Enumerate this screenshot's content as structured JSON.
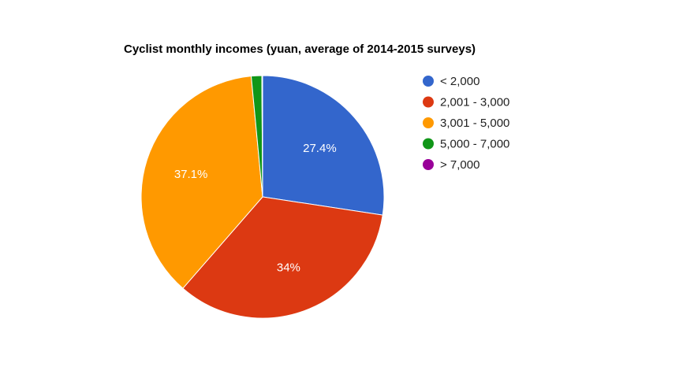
{
  "chart_data": {
    "type": "pie",
    "title": "Cyclist monthly incomes (yuan, average of 2014-2015 surveys)",
    "categories": [
      "< 2,000",
      "2,001 - 3,000",
      "3,001 - 5,000",
      "5,000 - 7,000",
      "> 7,000"
    ],
    "values": [
      27.4,
      34.0,
      37.1,
      1.4,
      0.1
    ],
    "slice_labels": [
      "27.4%",
      "34%",
      "37.1%",
      "",
      ""
    ],
    "colors": [
      "#3366cc",
      "#dc3912",
      "#ff9900",
      "#109618",
      "#990099"
    ],
    "legend_position": "right",
    "start_angle_deg": 0,
    "direction": "clockwise"
  }
}
